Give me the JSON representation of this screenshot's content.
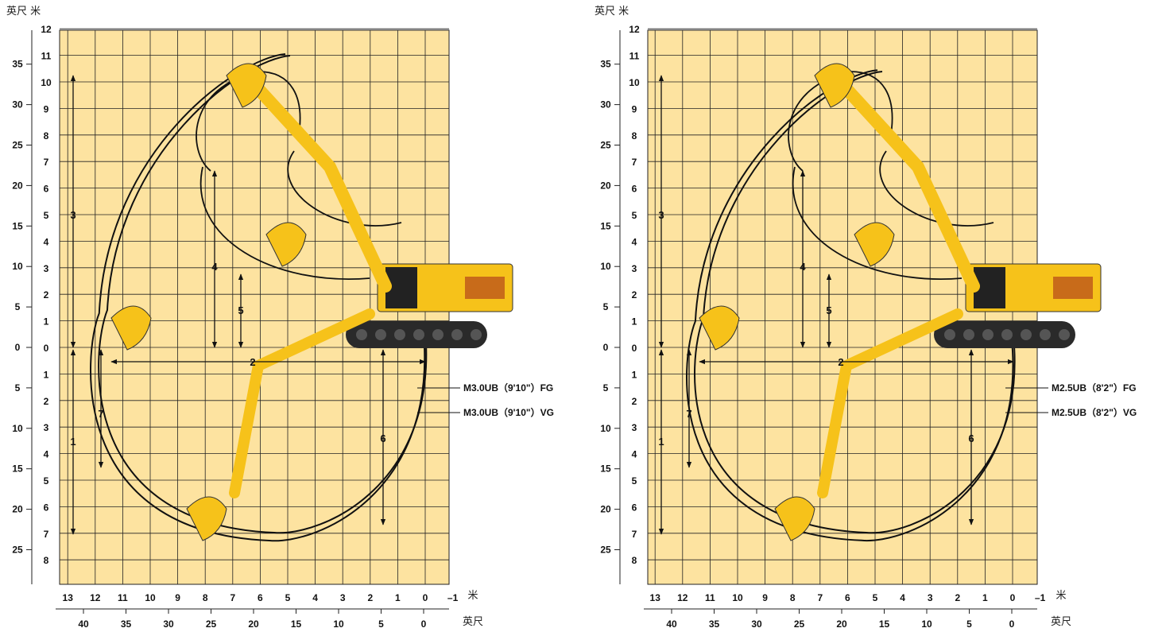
{
  "charts": [
    {
      "unit_header": "英尺 米",
      "meters_left": [
        "12",
        "11",
        "10",
        "9",
        "8",
        "7",
        "6",
        "5",
        "4",
        "3",
        "2",
        "1",
        "0",
        "1",
        "2",
        "3",
        "4",
        "5",
        "6",
        "7",
        "8"
      ],
      "feet_left": [
        "35",
        "30",
        "25",
        "20",
        "15",
        "10",
        "5",
        "0",
        "5",
        "10",
        "15",
        "20",
        "25"
      ],
      "meters_bottom": [
        "13",
        "12",
        "11",
        "10",
        "9",
        "8",
        "7",
        "6",
        "5",
        "4",
        "3",
        "2",
        "1",
        "0",
        "–1"
      ],
      "feet_bottom": [
        "40",
        "35",
        "30",
        "25",
        "20",
        "15",
        "10",
        "5",
        "0"
      ],
      "unit_m": "米",
      "unit_ft": "英尺",
      "dimension_labels": [
        "1",
        "2",
        "3",
        "4",
        "5",
        "6",
        "7"
      ],
      "config_fg": "M3.0UB（9'10\"）FG",
      "config_vg": "M3.0UB（9'10\"）VG"
    },
    {
      "unit_header": "英尺 米",
      "meters_left": [
        "12",
        "11",
        "10",
        "9",
        "8",
        "7",
        "6",
        "5",
        "4",
        "3",
        "2",
        "1",
        "0",
        "1",
        "2",
        "3",
        "4",
        "5",
        "6",
        "7",
        "8"
      ],
      "feet_left": [
        "35",
        "30",
        "25",
        "20",
        "15",
        "10",
        "5",
        "0",
        "5",
        "10",
        "15",
        "20",
        "25"
      ],
      "meters_bottom": [
        "13",
        "12",
        "11",
        "10",
        "9",
        "8",
        "7",
        "6",
        "5",
        "4",
        "3",
        "2",
        "1",
        "0",
        "–1"
      ],
      "feet_bottom": [
        "40",
        "35",
        "30",
        "25",
        "20",
        "15",
        "10",
        "5",
        "0"
      ],
      "unit_m": "米",
      "unit_ft": "英尺",
      "dimension_labels": [
        "1",
        "2",
        "3",
        "4",
        "5",
        "6",
        "7"
      ],
      "config_fg": "M2.5UB（8'2\"）FG",
      "config_vg": "M2.5UB（8'2\"）VG"
    }
  ],
  "colors": {
    "grid_bg": "#fde3a0",
    "machine": "#f6c21a",
    "track": "#2a2a2a",
    "line": "#111111"
  }
}
